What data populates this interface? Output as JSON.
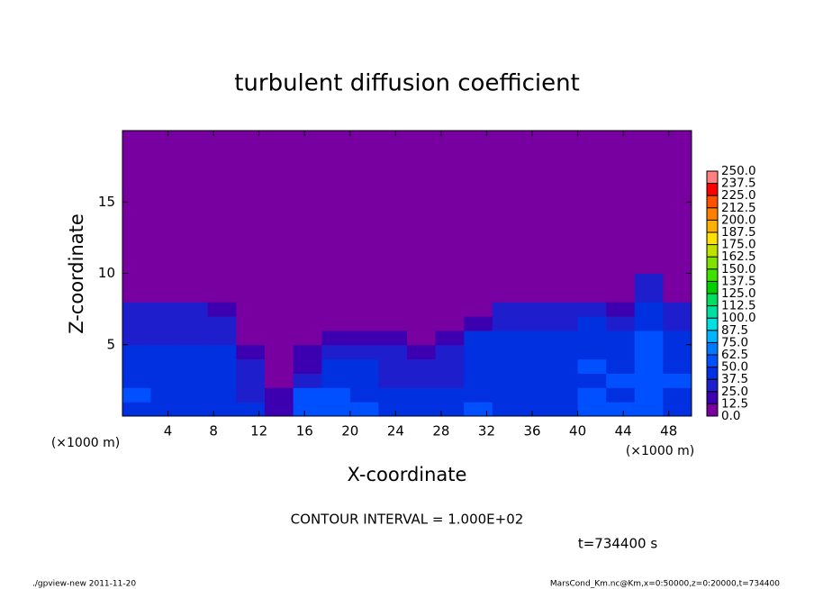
{
  "chart_data": {
    "type": "heatmap",
    "title": "turbulent diffusion coefficient",
    "xlabel": "X-coordinate",
    "ylabel": "Z-coordinate",
    "x_unit": "(×1000 m)",
    "x_unit_right": "(×1000 m)",
    "contour_interval": "CONTOUR INTERVAL = 1.000E+02",
    "time": "t=734400 s",
    "footer_left": "./gpview-new   2011-11-20",
    "footer_right": "MarsCond_Km.nc@Km,x=0:50000,z=0:20000,t=734400",
    "xlim": [
      0,
      50
    ],
    "ylim": [
      0,
      20
    ],
    "xticks": [
      4,
      8,
      12,
      16,
      20,
      24,
      28,
      32,
      36,
      40,
      44,
      48
    ],
    "yticks": [
      5,
      10,
      15
    ],
    "x_edges": [
      0,
      2.5,
      5,
      7.5,
      10,
      12.5,
      15,
      17.5,
      20,
      22.5,
      25,
      27.5,
      30,
      32.5,
      35,
      37.5,
      40,
      42.5,
      45,
      47.5,
      50
    ],
    "y_edges": [
      0,
      1,
      2,
      3,
      4,
      5,
      6,
      7,
      8,
      9,
      10,
      11
    ],
    "values": [
      [
        45,
        40,
        40,
        45,
        40,
        20,
        60,
        55,
        50,
        45,
        40,
        45,
        50,
        45,
        40,
        45,
        55,
        50,
        50,
        45
      ],
      [
        50,
        45,
        40,
        40,
        35,
        15,
        50,
        50,
        45,
        40,
        40,
        40,
        45,
        45,
        40,
        45,
        50,
        45,
        50,
        45
      ],
      [
        45,
        40,
        45,
        40,
        30,
        5,
        30,
        45,
        45,
        35,
        30,
        35,
        45,
        45,
        45,
        45,
        45,
        50,
        55,
        50
      ],
      [
        40,
        45,
        40,
        40,
        25,
        0,
        20,
        40,
        40,
        30,
        25,
        30,
        45,
        45,
        45,
        45,
        50,
        45,
        55,
        45
      ],
      [
        40,
        40,
        45,
        40,
        15,
        0,
        15,
        35,
        35,
        25,
        20,
        25,
        45,
        40,
        45,
        45,
        45,
        45,
        50,
        45
      ],
      [
        35,
        35,
        35,
        35,
        5,
        0,
        5,
        15,
        20,
        15,
        10,
        15,
        40,
        40,
        40,
        40,
        45,
        40,
        50,
        40
      ],
      [
        35,
        35,
        35,
        35,
        0,
        0,
        0,
        5,
        5,
        5,
        5,
        5,
        20,
        35,
        35,
        35,
        40,
        35,
        45,
        35
      ],
      [
        30,
        30,
        30,
        20,
        0,
        0,
        0,
        0,
        0,
        0,
        0,
        0,
        0,
        25,
        25,
        25,
        30,
        20,
        40,
        25
      ],
      [
        0,
        0,
        0,
        0,
        0,
        0,
        0,
        0,
        0,
        0,
        0,
        0,
        0,
        0,
        0,
        0,
        0,
        10,
        35,
        5
      ],
      [
        0,
        0,
        0,
        0,
        0,
        0,
        0,
        0,
        0,
        0,
        0,
        0,
        0,
        0,
        0,
        0,
        0,
        5,
        30,
        0
      ],
      [
        0,
        0,
        0,
        0,
        0,
        0,
        0,
        0,
        0,
        0,
        0,
        0,
        0,
        0,
        0,
        0,
        0,
        0,
        10,
        0
      ]
    ],
    "colorbar": {
      "ticks": [
        {
          "value": 0,
          "label": "0.0"
        },
        12.5,
        {
          "value": 25,
          "label": "25.0"
        },
        37.5,
        {
          "value": 50,
          "label": "50.0"
        },
        62.5,
        {
          "value": 75,
          "label": "75.0"
        },
        87.5,
        {
          "value": 100,
          "label": "100.0"
        },
        112.5,
        {
          "value": 125,
          "label": "125.0"
        },
        137.5,
        {
          "value": 150,
          "label": "150.0"
        },
        162.5,
        {
          "value": 175,
          "label": "175.0"
        },
        187.5,
        {
          "value": 200,
          "label": "200.0"
        },
        212.5,
        {
          "value": 225,
          "label": "225.0"
        },
        237.5,
        {
          "value": 250,
          "label": "250.0"
        }
      ],
      "colors": [
        "#7800a0",
        "#3c00b0",
        "#1e1ecc",
        "#0030e0",
        "#0050ff",
        "#0078ff",
        "#00b4ff",
        "#00e0e0",
        "#00e0a0",
        "#00e060",
        "#00d000",
        "#40e000",
        "#80e000",
        "#c0e000",
        "#ffe000",
        "#ffb000",
        "#ff8000",
        "#ff5000",
        "#ff0000",
        "#ff8080"
      ]
    }
  }
}
